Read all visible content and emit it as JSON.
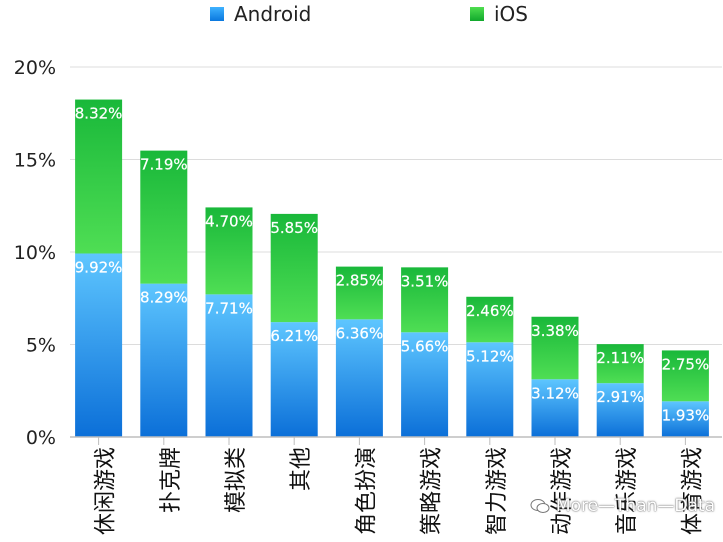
{
  "chart_data": {
    "type": "bar",
    "stacked": true,
    "categories": [
      "休闲游戏",
      "扑克牌",
      "模拟类",
      "其他",
      "角色扮演",
      "策略游戏",
      "智力游戏",
      "动作游戏",
      "音乐游戏",
      "体育游戏"
    ],
    "series": [
      {
        "name": "Android",
        "color": "#1e90ee",
        "values": [
          9.92,
          8.29,
          7.71,
          6.21,
          6.36,
          5.66,
          5.12,
          3.12,
          2.91,
          1.93
        ],
        "labels": [
          "9.92%",
          "8.29%",
          "7.71%",
          "6.21%",
          "6.36%",
          "5.66%",
          "5.12%",
          "3.12%",
          "2.91%",
          "1.93%"
        ]
      },
      {
        "name": "iOS",
        "color": "#1ec43a",
        "values": [
          8.32,
          7.19,
          4.7,
          5.85,
          2.85,
          3.51,
          2.46,
          3.38,
          2.11,
          2.75
        ],
        "labels": [
          "8.32%",
          "7.19%",
          "4.70%",
          "5.85%",
          "2.85%",
          "3.51%",
          "2.46%",
          "3.38%",
          "2.11%",
          "2.75%"
        ]
      }
    ],
    "ylim": [
      0,
      20
    ],
    "yticks": [
      0,
      5,
      10,
      15,
      20
    ],
    "ytick_labels": [
      "0%",
      "5%",
      "10%",
      "15%",
      "20%"
    ],
    "grid": true,
    "legend_position": "top"
  },
  "legend": {
    "android_label": "Android",
    "ios_label": "iOS"
  },
  "watermark": {
    "text": "More—Than—Data",
    "icon": "wechat-icon"
  }
}
